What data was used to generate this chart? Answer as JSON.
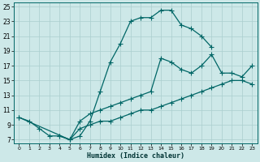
{
  "xlabel": "Humidex (Indice chaleur)",
  "bg_color": "#cde8e8",
  "grid_color": "#aacece",
  "line_color": "#006666",
  "xlim": [
    -0.5,
    23.5
  ],
  "ylim": [
    6.5,
    25.5
  ],
  "xticks": [
    0,
    1,
    2,
    3,
    4,
    5,
    6,
    7,
    8,
    9,
    10,
    11,
    12,
    13,
    14,
    15,
    16,
    17,
    18,
    19,
    20,
    21,
    22,
    23
  ],
  "yticks": [
    7,
    9,
    11,
    13,
    15,
    17,
    19,
    21,
    23,
    25
  ],
  "line1_x": [
    0,
    1,
    2,
    3,
    4,
    5,
    6,
    7,
    8,
    9,
    10,
    11,
    12,
    13,
    14,
    15,
    16,
    17,
    18,
    19
  ],
  "line1_y": [
    10,
    9.5,
    8.5,
    7.5,
    7.5,
    7.0,
    7.5,
    9.5,
    13.5,
    17.5,
    20.0,
    23.0,
    23.5,
    23.5,
    24.5,
    24.5,
    22.5,
    22.0,
    21.0,
    19.5
  ],
  "line2_x": [
    0,
    5,
    6,
    7,
    8,
    9,
    10,
    11,
    12,
    13,
    14,
    15,
    16,
    17,
    18,
    19,
    20,
    21,
    22,
    23
  ],
  "line2_y": [
    10.0,
    7.0,
    9.5,
    10.5,
    11.0,
    11.5,
    12.0,
    12.5,
    13.0,
    13.5,
    18.0,
    17.5,
    16.5,
    16.0,
    17.0,
    18.5,
    16.0,
    16.0,
    15.5,
    17.0
  ],
  "line3_x": [
    4,
    5,
    6,
    7,
    8,
    9,
    10,
    11,
    12,
    13,
    14,
    15,
    16,
    17,
    18,
    19,
    20,
    21,
    22,
    23
  ],
  "line3_y": [
    7.5,
    7.0,
    8.5,
    9.0,
    9.5,
    9.5,
    10.0,
    10.5,
    11.0,
    11.0,
    11.5,
    12.0,
    12.5,
    13.0,
    13.5,
    14.0,
    14.5,
    15.0,
    15.0,
    14.5
  ]
}
